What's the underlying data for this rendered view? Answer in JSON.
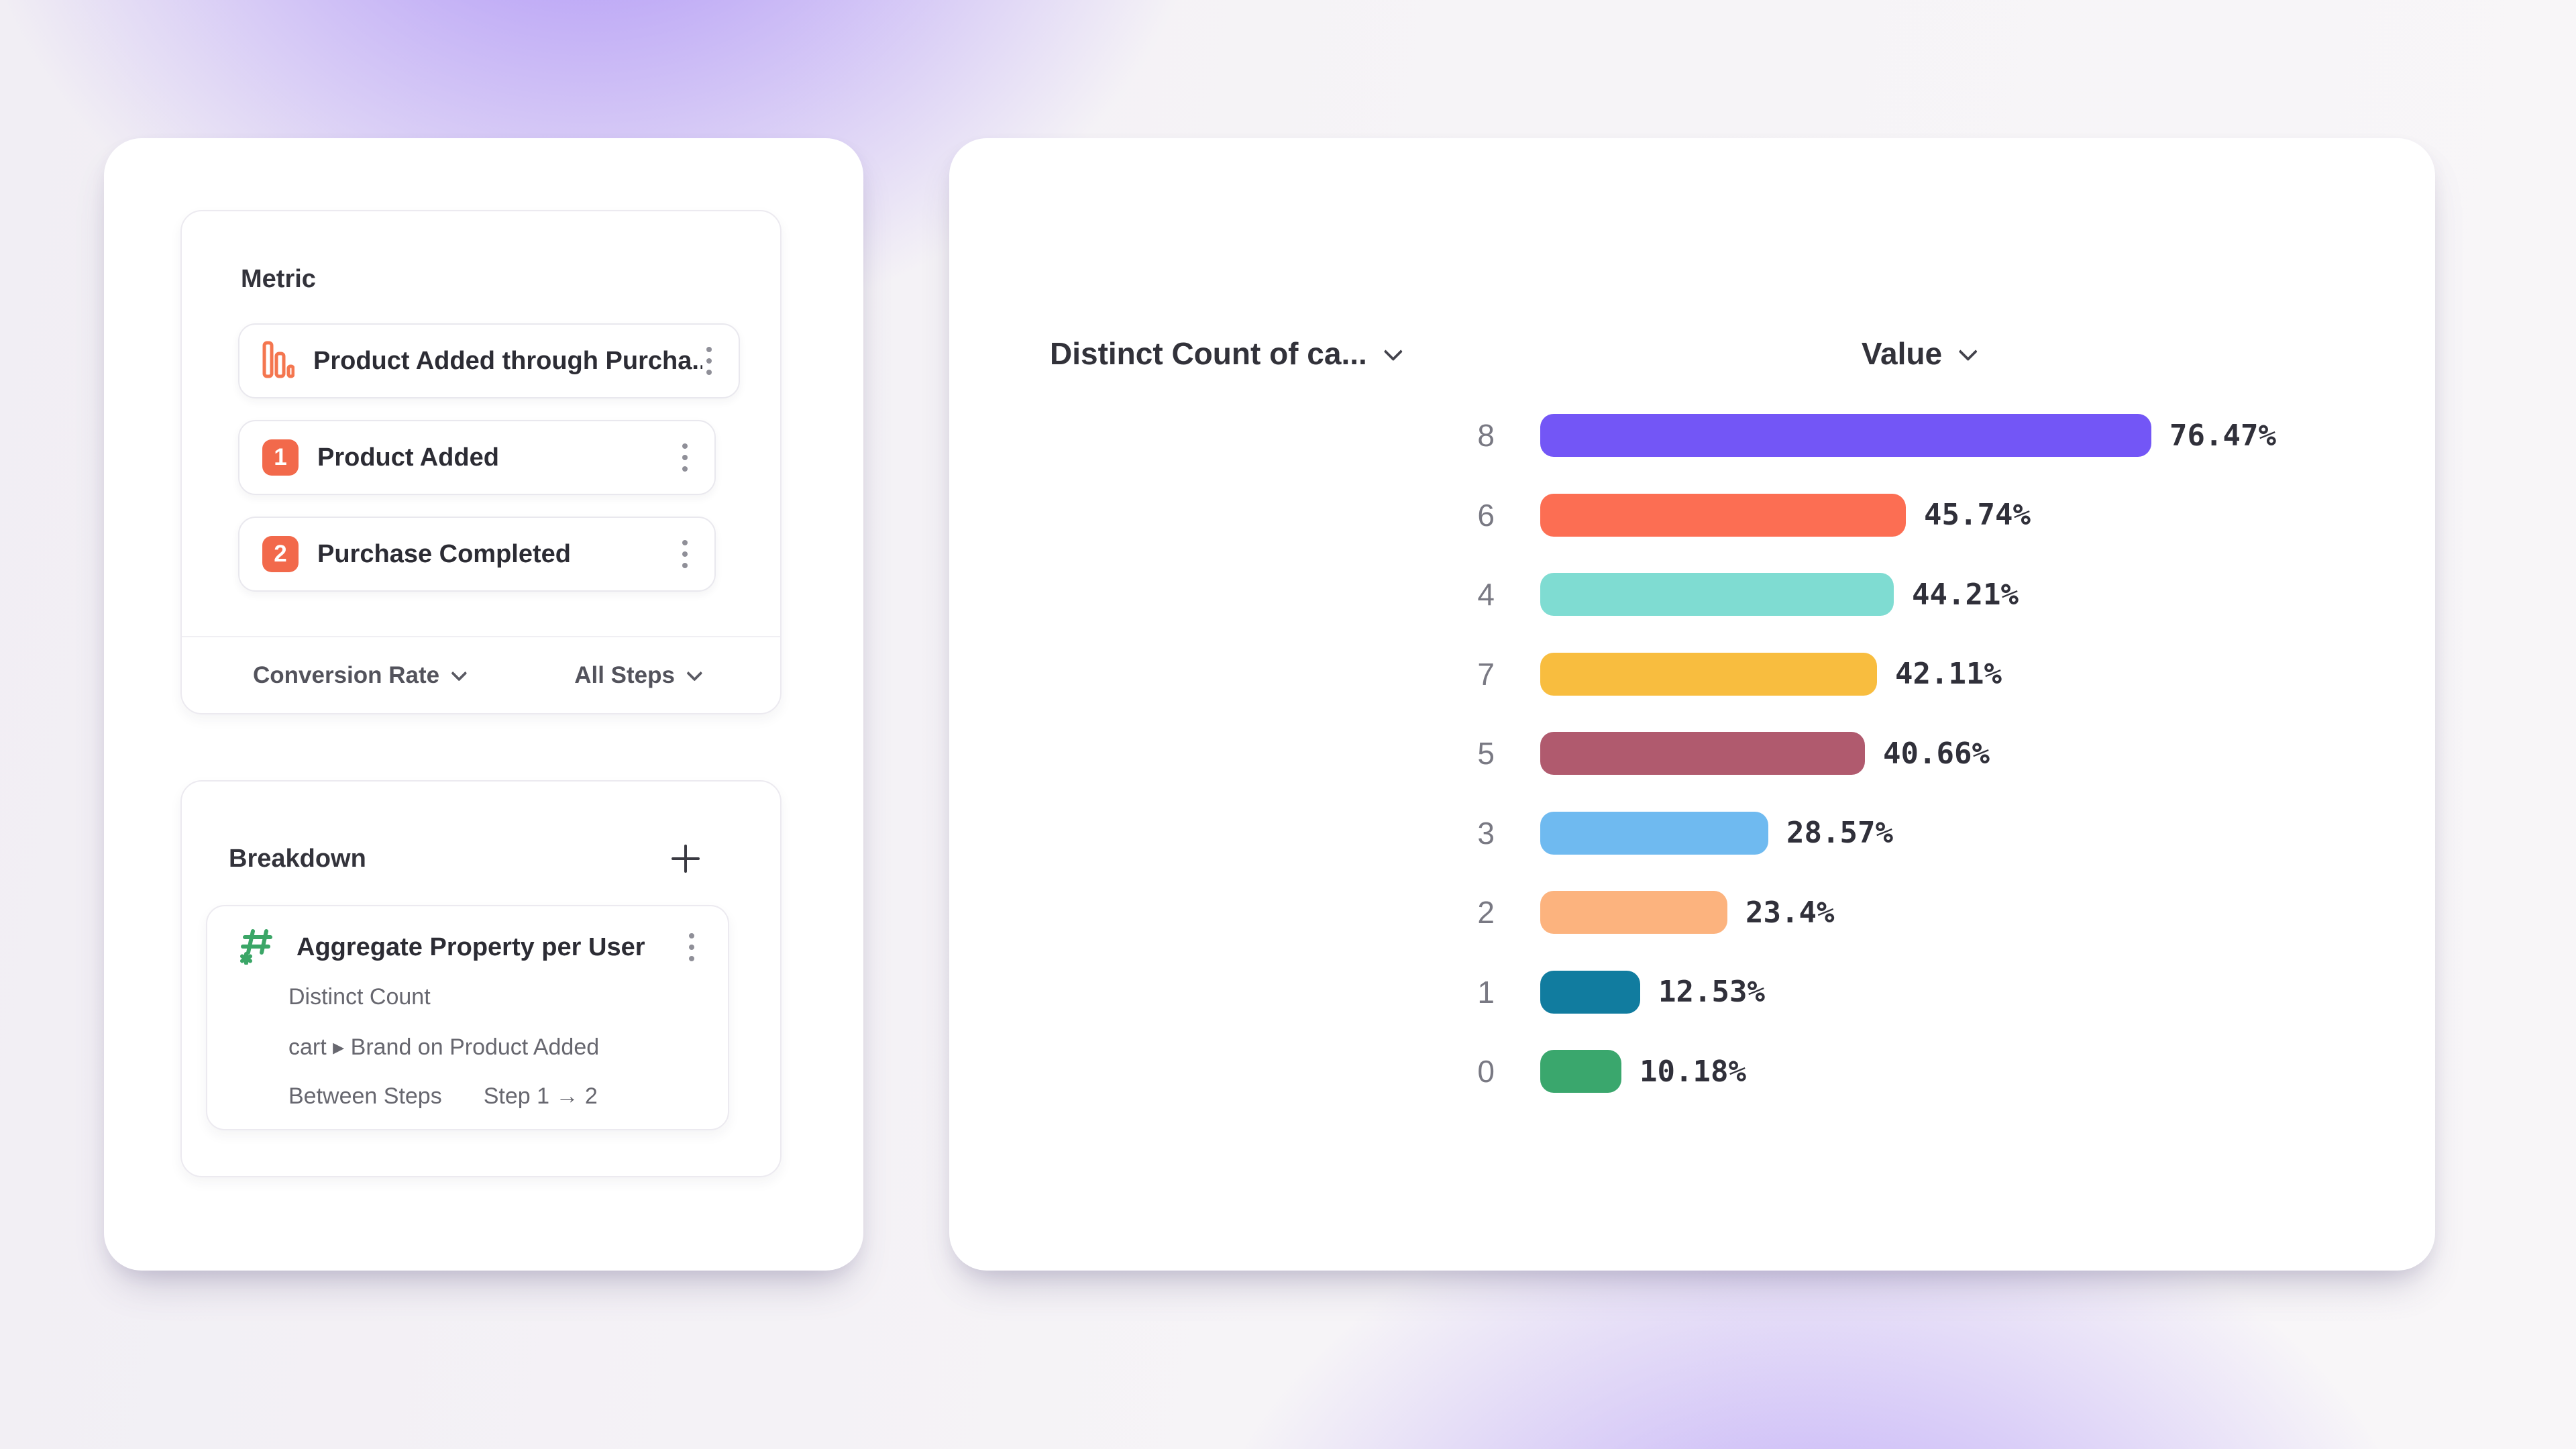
{
  "theme": {
    "background_glow": "#9471F8",
    "card_background": "#FFFFFF",
    "accent_orange": "#F2694B",
    "accent_green": "#3BA667",
    "text_dark": "#2C2C34",
    "text_gray": "#67676F"
  },
  "metric_panel": {
    "title": "Metric",
    "funnel": {
      "label": "Product Added through Purcha...",
      "icon_color": "#F4764F"
    },
    "steps": [
      {
        "index": "1",
        "label": "Product Added"
      },
      {
        "index": "2",
        "label": "Purchase Completed"
      }
    ],
    "footer": {
      "left_dropdown": "Conversion Rate",
      "right_dropdown": "All Steps"
    }
  },
  "breakdown_panel": {
    "title": "Breakdown",
    "item": {
      "title": "Aggregate Property per User",
      "aggregation": "Distinct Count",
      "property": "cart ▸ Brand on Product Added",
      "scope_label": "Between Steps",
      "scope_value": "Step 1 → 2"
    }
  },
  "chart": {
    "left_header": "Distinct Count of ca...",
    "right_header": "Value"
  },
  "chart_data": {
    "type": "bar",
    "orientation": "horizontal",
    "categories": [
      "8",
      "6",
      "4",
      "7",
      "5",
      "3",
      "2",
      "1",
      "0"
    ],
    "values": [
      76.47,
      45.74,
      44.21,
      42.11,
      40.66,
      28.57,
      23.4,
      12.53,
      10.18
    ],
    "labels": [
      "76.47%",
      "45.74%",
      "44.21%",
      "42.11%",
      "40.66%",
      "28.57%",
      "23.4%",
      "12.53%",
      "10.18%"
    ],
    "colors": [
      "#7356F6",
      "#FC6E53",
      "#7FDCD2",
      "#F8BD3F",
      "#B05A6E",
      "#6FBAF0",
      "#FCB37E",
      "#117C9F",
      "#3AA76D"
    ],
    "title": "",
    "xlabel": "Value",
    "ylabel": "Distinct Count of ca...",
    "xlim": [
      0,
      100
    ],
    "grid": false,
    "legend": false
  }
}
